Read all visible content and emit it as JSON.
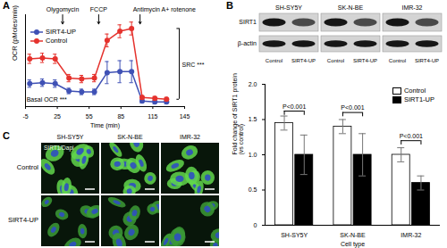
{
  "chart_data": [
    {
      "panel": "A",
      "type": "line",
      "xlabel": "Time (min)",
      "ylabel": "OCR (pMoles/min)",
      "x": [
        -1,
        11,
        23,
        36,
        48,
        60,
        72,
        84,
        95,
        105,
        117,
        128
      ],
      "series": [
        {
          "name": "SIRT4-UP",
          "color": "#3f51b5",
          "marker": "circle",
          "line_style": "solid",
          "values": [
            250,
            260,
            250,
            170,
            160,
            160,
            370,
            380,
            380,
            60,
            50,
            50
          ],
          "errors": [
            40,
            40,
            40,
            30,
            30,
            30,
            120,
            120,
            120,
            20,
            20,
            20
          ]
        },
        {
          "name": "Control",
          "color": "#e5322d",
          "marker": "circle",
          "line_style": "solid",
          "values": [
            520,
            530,
            520,
            310,
            300,
            310,
            720,
            820,
            850,
            100,
            90,
            80
          ],
          "errors": [
            50,
            50,
            50,
            40,
            40,
            40,
            70,
            70,
            70,
            20,
            20,
            20
          ]
        }
      ],
      "xlim": [
        -5,
        145
      ],
      "xticks": [
        -5,
        25,
        55,
        85,
        115,
        145
      ],
      "ylim": [
        0,
        1000
      ],
      "tick_labels": "x",
      "legend": "top-left",
      "annotations": [
        {
          "text": "Olygomycin",
          "x": 30
        },
        {
          "text": "FCCP",
          "x": 64
        },
        {
          "text": "Antimycin A+ rotenone",
          "x": 103
        },
        {
          "text": "Basal OCR ***",
          "x": -4,
          "y": 80
        },
        {
          "text": "SRC ***",
          "x": 140,
          "y": 450
        }
      ]
    },
    {
      "panel": "B",
      "type": "bar",
      "xlabel": "Cell type",
      "ylabel": "Fold change of SIRT1 protein (vs control)",
      "categories": [
        "SH-SY5Y",
        "SK-N-BE",
        "IMR-32"
      ],
      "series": [
        {
          "name": "Control",
          "color": "#ffffff",
          "values": [
            1.45,
            1.4,
            1.0
          ],
          "errors": [
            0.1,
            0.1,
            0.1
          ]
        },
        {
          "name": "SIRT1-UP",
          "color": "#000000",
          "values": [
            1.0,
            1.0,
            0.6
          ],
          "errors": [
            0.28,
            0.3,
            0.1
          ]
        }
      ],
      "ylim": [
        0,
        2
      ],
      "yticks": [
        0,
        0.5,
        {
          "value": 1,
          "label": "1.0"
        },
        1.5,
        {
          "value": 2,
          "label": "2.0"
        }
      ],
      "legend": "top-right",
      "annotations": [
        {
          "text": "P<0.001",
          "category": "SH-SY5Y",
          "y": 1.62
        },
        {
          "text": "P<0.001",
          "category": "SK-N-BE",
          "y": 1.6
        },
        {
          "text": "P<0.001",
          "category": "IMR-32",
          "y": 1.2
        }
      ]
    }
  ],
  "blot": {
    "cell_lines": [
      "SH-SY5Y",
      "SK-N-BE",
      "IMR-32"
    ],
    "rows": [
      "SIRT1",
      "β-actin"
    ],
    "lanes": [
      "Control",
      "SIRT4-UP"
    ]
  },
  "images": {
    "panel": "C",
    "cell_lines": [
      "SH-SY5Y",
      "SK-N-BE",
      "IMR-32"
    ],
    "rows": [
      "Control",
      "SIRT4-UP"
    ],
    "stain": "SIRT1/Dapi"
  }
}
